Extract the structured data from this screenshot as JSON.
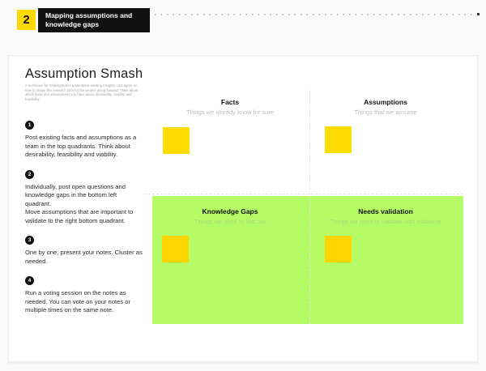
{
  "banner": {
    "step_number": "2",
    "title": "Mapping assumptions and knowledge gaps",
    "accent_color": "#ffd902",
    "box_color": "#111111"
  },
  "card": {
    "title": "Assumption Smash",
    "description": "A technique for helping teams understand existing insights, and agree on how to shape the research plan for the project going forward. Think about which facts and assumptions you have about desirability, viability and feasibility.",
    "steps": [
      {
        "number": "1",
        "text": "Post existing facts and assumptions as a team in the top quadrants. Think about desirability, feasibility and viability."
      },
      {
        "number": "2",
        "text": "Individually, post open questions and knowledge gaps in the bottom left quadrant.\nMove assumptions that are important to validate to the right bottom quadrant."
      },
      {
        "number": "3",
        "text": "One by one, present your notes. Cluster as needed."
      },
      {
        "number": "4",
        "text": "Run a voting session on the notes as needed. You can vote on your notes or multiple times on the same note."
      }
    ]
  },
  "board": {
    "quadrants": [
      {
        "title": "Facts",
        "subtitle": "Things we already know for sure"
      },
      {
        "title": "Assumptions",
        "subtitle": "Things that we assume"
      },
      {
        "title": "Knowledge Gaps",
        "subtitle": "Things we need to find out"
      },
      {
        "title": "Needs validation",
        "subtitle": "Things we need to validate with evidence"
      }
    ],
    "sticky_color": "#ffdc00",
    "green_zone_color": "#b4fb66"
  }
}
